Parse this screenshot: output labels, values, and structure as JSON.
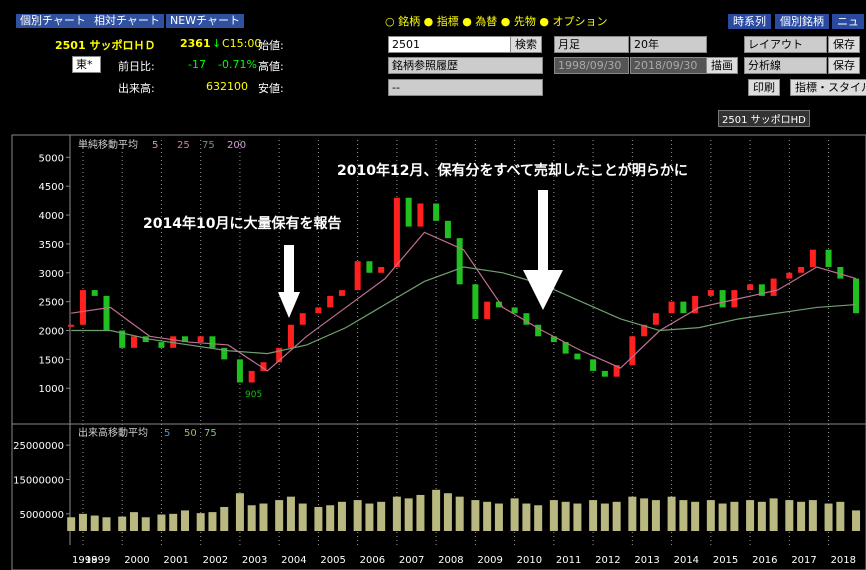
{
  "header": {
    "tabs": [
      "個別チャート",
      "相対チャート",
      "NEWチャート"
    ],
    "stock": {
      "name": "2501 サッポロＨＤ",
      "price": "2361",
      "arrow": "↓",
      "time": "C15:00",
      "open_label": "始値:",
      "market": "東*",
      "change_label": "前日比:",
      "change": "-17",
      "change_pct": "-0.71%",
      "high_label": "高値:",
      "volume_label": "出来高:",
      "volume": "632100",
      "low_label": "安値:"
    },
    "radios": [
      "銘柄",
      "指標",
      "為替",
      "先物",
      "オプション"
    ],
    "code_input": "2501",
    "search": "検索",
    "history": "銘柄参照履歴",
    "dash": "--",
    "period": "月足",
    "span": "20年",
    "from": "1998/09/30",
    "to": "2018/09/30",
    "draw": "描画",
    "buttons": [
      "時系列",
      "個別銘柄",
      "ニュ"
    ],
    "layout": "レイアウト",
    "save1": "保存",
    "analysis": "分析線",
    "save2": "保存",
    "print": "印刷",
    "style": "指標・スタイル",
    "chart_label": "2501 サッポロHD"
  },
  "chart": {
    "ma_title": "単純移動平均",
    "ma_legend": [
      {
        "name": "5",
        "color": "#d0a0a0"
      },
      {
        "name": "25",
        "color": "#d080a0"
      },
      {
        "name": "75",
        "color": "#60a060"
      },
      {
        "name": "200",
        "color": "#d0a0d0"
      }
    ],
    "vol_title": "出来高移動平均",
    "vol_legend": [
      {
        "name": "5",
        "color": "#6090d0"
      },
      {
        "name": "50",
        "color": "#b0b060"
      },
      {
        "name": "75",
        "color": "#80c080"
      }
    ],
    "annotation_2014": "2014年10月に大量保有を報告",
    "annotation_2010": "2010年12月、保有分をすべて売却したことが明らかに",
    "low_label": "905",
    "xlim": [
      1998.67,
      2018.75
    ],
    "xticks": [
      {
        "value": 1998.67,
        "label": "1998"
      },
      {
        "value": 1999,
        "label": "1999"
      },
      {
        "value": 2000,
        "label": "2000"
      },
      {
        "value": 2001,
        "label": "2001"
      },
      {
        "value": 2002,
        "label": "2002"
      },
      {
        "value": 2003,
        "label": "2003"
      },
      {
        "value": 2004,
        "label": "2004"
      },
      {
        "value": 2005,
        "label": "2005"
      },
      {
        "value": 2006,
        "label": "2006"
      },
      {
        "value": 2007,
        "label": "2007"
      },
      {
        "value": 2008,
        "label": "2008"
      },
      {
        "value": 2009,
        "label": "2009"
      },
      {
        "value": 2010,
        "label": "2010"
      },
      {
        "value": 2011,
        "label": "2011"
      },
      {
        "value": 2012,
        "label": "2012"
      },
      {
        "value": 2013,
        "label": "2013"
      },
      {
        "value": 2014,
        "label": "2014"
      },
      {
        "value": 2015,
        "label": "2015"
      },
      {
        "value": 2016,
        "label": "2016"
      },
      {
        "value": 2017,
        "label": "2017"
      },
      {
        "value": 2018,
        "label": "2018"
      }
    ],
    "ylim": [
      450,
      5300
    ],
    "yticks": [
      1000,
      1500,
      2000,
      2500,
      3000,
      3500,
      4000,
      4500,
      5000
    ],
    "x": [
      1998.7,
      1999.0,
      1999.3,
      1999.6,
      2000.0,
      2000.3,
      2000.6,
      2001.0,
      2001.3,
      2001.6,
      2002.0,
      2002.3,
      2002.6,
      2003.0,
      2003.3,
      2003.6,
      2004.0,
      2004.3,
      2004.6,
      2005.0,
      2005.3,
      2005.6,
      2006.0,
      2006.3,
      2006.6,
      2007.0,
      2007.3,
      2007.6,
      2008.0,
      2008.3,
      2008.6,
      2009.0,
      2009.3,
      2009.6,
      2010.0,
      2010.3,
      2010.6,
      2011.0,
      2011.3,
      2011.6,
      2012.0,
      2012.3,
      2012.6,
      2013.0,
      2013.3,
      2013.6,
      2014.0,
      2014.3,
      2014.6,
      2015.0,
      2015.3,
      2015.6,
      2016.0,
      2016.3,
      2016.6,
      2017.0,
      2017.3,
      2017.6,
      2018.0,
      2018.3,
      2018.7
    ],
    "close": [
      2100,
      2700,
      2600,
      2000,
      1700,
      1900,
      1800,
      1700,
      1900,
      1800,
      1900,
      1700,
      1500,
      1100,
      1300,
      1450,
      1700,
      2100,
      2300,
      2400,
      2600,
      2700,
      3200,
      3000,
      3100,
      4300,
      3800,
      4200,
      3900,
      3600,
      2800,
      2200,
      2500,
      2400,
      2300,
      2100,
      1900,
      1800,
      1600,
      1500,
      1300,
      1200,
      1400,
      1900,
      2100,
      2300,
      2500,
      2300,
      2600,
      2700,
      2400,
      2700,
      2800,
      2600,
      2900,
      3000,
      3100,
      3400,
      3100,
      2900,
      2300
    ],
    "volume": [
      4000000,
      5000000,
      4500000,
      4000000,
      4200000,
      5500000,
      4000000,
      4800000,
      5000000,
      6000000,
      5200000,
      5500000,
      7000000,
      11000000,
      7500000,
      8000000,
      9000000,
      10000000,
      8000000,
      7000000,
      7500000,
      8500000,
      9000000,
      8000000,
      8500000,
      10000000,
      9500000,
      10500000,
      12000000,
      11000000,
      10000000,
      9000000,
      8500000,
      8000000,
      9500000,
      8000000,
      7500000,
      9000000,
      8500000,
      8000000,
      9000000,
      8000000,
      8500000,
      10000000,
      9500000,
      9000000,
      10000000,
      9000000,
      8500000,
      9000000,
      8000000,
      8500000,
      9000000,
      8500000,
      9500000,
      9000000,
      8500000,
      9000000,
      8000000,
      8500000,
      6000000
    ],
    "ma_x": [
      1998.7,
      1999.7,
      2000.7,
      2001.7,
      2002.7,
      2003.7,
      2004.7,
      2005.7,
      2006.7,
      2007.7,
      2008.7,
      2009.7,
      2010.7,
      2011.7,
      2012.7,
      2013.7,
      2014.7,
      2015.7,
      2016.7,
      2017.7,
      2018.7
    ],
    "ma_series": [
      {
        "name": "25",
        "color": "#c07090",
        "values": [
          2300,
          2400,
          1900,
          1800,
          1750,
          1300,
          1900,
          2400,
          2900,
          3700,
          3400,
          2400,
          2000,
          1650,
          1350,
          2000,
          2400,
          2550,
          2700,
          3100,
          2900
        ]
      },
      {
        "name": "75",
        "color": "#70a070",
        "values": [
          2000,
          2000,
          1850,
          1750,
          1650,
          1600,
          1750,
          2050,
          2450,
          2850,
          3100,
          3000,
          2800,
          2500,
          2200,
          2000,
          2050,
          2200,
          2300,
          2400,
          2450
        ]
      }
    ],
    "vol_ylim": [
      0,
      30000000
    ],
    "vol_yticks": [
      5000000,
      15000000,
      25000000
    ]
  }
}
